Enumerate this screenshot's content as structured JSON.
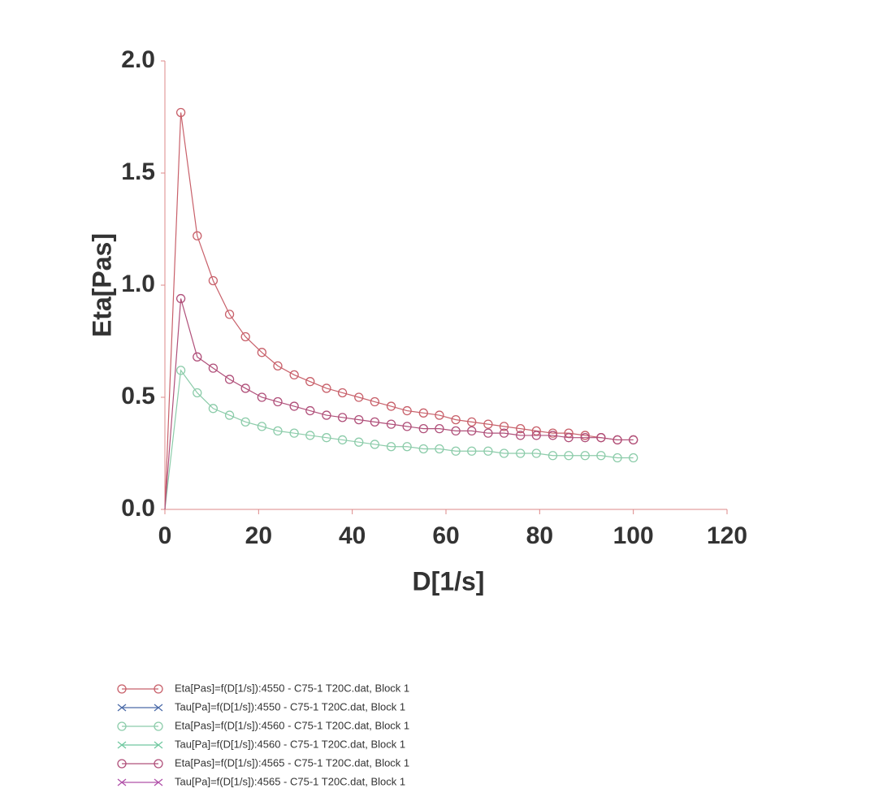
{
  "chart_data": {
    "type": "line",
    "x_label": "D[1/s]",
    "y_label": "Eta[Pas]",
    "xlim": [
      0,
      120
    ],
    "ylim": [
      0,
      2.0
    ],
    "xticks": [
      0,
      20,
      40,
      60,
      80,
      100,
      120
    ],
    "yticks": [
      {
        "value": 0,
        "label": "0.0"
      },
      {
        "value": 0.5,
        "label": "0.5"
      },
      {
        "value": 1.0,
        "label": "1.0"
      },
      {
        "value": 1.5,
        "label": "1.5"
      },
      {
        "value": 2.0,
        "label": "2.0"
      }
    ],
    "x": [
      0,
      3.4,
      6.9,
      10.3,
      13.8,
      17.2,
      20.7,
      24.1,
      27.6,
      31.0,
      34.5,
      37.9,
      41.4,
      44.8,
      48.3,
      51.7,
      55.2,
      58.6,
      62.1,
      65.5,
      69.0,
      72.4,
      75.9,
      79.3,
      82.8,
      86.2,
      89.7,
      93.1,
      96.6,
      100
    ],
    "series": [
      {
        "name": "Eta[Pas]=f(D[1/s]):4550 - C75-1 T20C.dat, Block 1",
        "color": "#c8606a",
        "marker": "circle",
        "values": [
          0,
          1.77,
          1.22,
          1.02,
          0.87,
          0.77,
          0.7,
          0.64,
          0.6,
          0.57,
          0.54,
          0.52,
          0.5,
          0.48,
          0.46,
          0.44,
          0.43,
          0.42,
          0.4,
          0.39,
          0.38,
          0.37,
          0.36,
          0.35,
          0.34,
          0.34,
          0.33,
          0.32,
          0.31,
          0.31
        ]
      },
      {
        "name": "Tau[Pa]=f(D[1/s]):4550 - C75-1 T20C.dat, Block 1",
        "color": "#4a6aa8",
        "marker": "cross"
      },
      {
        "name": "Eta[Pas]=f(D[1/s]):4560 - C75-1 T20C.dat, Block 1",
        "color": "#8cccaa",
        "marker": "circle",
        "values": [
          0,
          0.62,
          0.52,
          0.45,
          0.42,
          0.39,
          0.37,
          0.35,
          0.34,
          0.33,
          0.32,
          0.31,
          0.3,
          0.29,
          0.28,
          0.28,
          0.27,
          0.27,
          0.26,
          0.26,
          0.26,
          0.25,
          0.25,
          0.25,
          0.24,
          0.24,
          0.24,
          0.24,
          0.23,
          0.23
        ]
      },
      {
        "name": "Tau[Pa]=f(D[1/s]):4560 - C75-1 T20C.dat, Block 1",
        "color": "#70c8a0",
        "marker": "cross"
      },
      {
        "name": "Eta[Pas]=f(D[1/s]):4565 - C75-1 T20C.dat, Block 1",
        "color": "#b0507a",
        "marker": "circle",
        "values": [
          0,
          0.94,
          0.68,
          0.63,
          0.58,
          0.54,
          0.5,
          0.48,
          0.46,
          0.44,
          0.42,
          0.41,
          0.4,
          0.39,
          0.38,
          0.37,
          0.36,
          0.36,
          0.35,
          0.35,
          0.34,
          0.34,
          0.33,
          0.33,
          0.33,
          0.32,
          0.32,
          0.32,
          0.31,
          0.31
        ]
      },
      {
        "name": "Tau[Pa]=f(D[1/s]):4565 - C75-1 T20C.dat, Block 1",
        "color": "#b050a8",
        "marker": "cross"
      }
    ]
  }
}
